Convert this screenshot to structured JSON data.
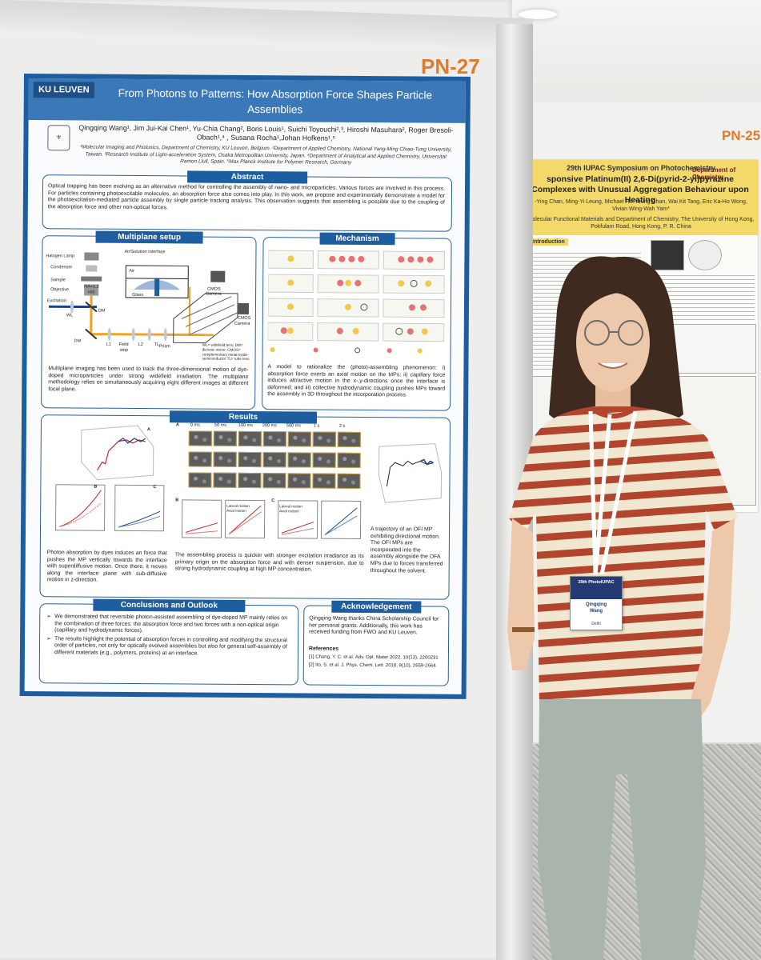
{
  "scene": {
    "board_id": "PN-27",
    "neighbor_board_id": "PN-25"
  },
  "poster": {
    "logo": "KU LEUVEN",
    "title": "From Photons to Patterns: How  Absorption Force Shapes Particle Assemblies",
    "authors": "Qingqing Wang¹, Jim Jui-Kai Chen¹, Yu-Chia Chang², Boris Louis¹, Suichi Toyouchi²,³, Hiroshi Masuhara², Roger Bresoli-Obach¹,⁴ , Susana Rocha¹,Johan Hofkens¹,⁵",
    "affiliations": "¹Molecular Imaging and Photonics, Department of Chemistry, KU Leuven, Belgium. ²Department of Applied Chemistry, National Yang-Ming Chiao-Tung University, Taiwan. ³Research Institute of Light-acceleration System, Osaka Metropolitan University, Japan. ⁴Department of Analytical and Applied Chemistry, Universitat Ramon Llull, Spain. ⁵Max Planck Institute for Polymer Research, Germany",
    "abstract": {
      "heading": "Abstract",
      "text": "Optical trapping has been evolving as an alternative method for controlling the assembly of nano- and microparticles. Various forces are involved in this process. For particles containing photoexcitable molecules, an absorption force also comes into play. In this work, we propose and experimentally demonstrate a model for the photoexcitation-mediated particle assembly by single particle tracking analysis. This observation suggests that assembling is possible due to the coupling of the absorption force and other non-optical forces."
    },
    "multiplane": {
      "heading": "Multiplane setup",
      "labels": {
        "halogen": "Halogen Lamp",
        "condenser": "Condenser",
        "sample": "Sample",
        "objective": "Objective",
        "na": "NA=1.2",
        "mag": "×60",
        "interface": "Air/Solution Interface",
        "air": "Air",
        "glass": "Glass",
        "cmos_camera_1": "CMOS",
        "cmos_camera_2": "Camera",
        "excitation": "Excitation",
        "wl": "WL",
        "dm1": "DM",
        "dm2": "DM",
        "prism": "Prism",
        "l1": "L1",
        "field_stop_1": "Field",
        "field_stop_2": "stop",
        "l2": "L2",
        "tl": "TL",
        "legend": "WL= widefield lens; DM= dichroic mirror; CMOS= complementary metal-oxide-semiconductor TL= tube lens"
      },
      "caption": "Multiplane imaging has been used to track the three-dimensional motion of dye-doped microparticles under strong widefield irradiation. The multiplane methodology relies on simultaneously acquiring eight different images at different focal plane."
    },
    "mechanism": {
      "heading": "Mechanism",
      "caption": "A model to rationalize the (photo)-assembling phenomenon: i) absorption force exerts an axial motion on the MPs; ii) capillary force induces attractive motion in the x-,y-directions once the interface is deformed; and iii) collective hydrodynamic coupling pushes MPs toward the assembly in 3D throughout the incorporation process."
    },
    "results": {
      "heading": "Results",
      "caption_left": "Photon absorption by dyes induces an force that pushes the MP vertically towards the interface with superdiffusive motion. Once there, it moves along the interface plane with sub-diffusive motion in z-direction.",
      "caption_mid": "The assembling process is quicker with stronger excitation irradiance as its primary origin on the absorption force and with denser suspension, due to strong hydrodynamic coupling at high MP concentration.",
      "caption_right": "A trajectory of an OFI MP exhibiting directional motion. The OFI MPs are incorporated into the assembly alongside the OFA MPs due to forces transferred throughout the solvent.",
      "timepoints": [
        "0 ms",
        "50 ms",
        "100 ms",
        "200 ms",
        "500 ms",
        "1 s",
        "2 s"
      ],
      "panel_a": "A",
      "panel_b": "B",
      "panel_c": "C",
      "legend_lateral": "Lateral motion",
      "legend_axial": "Axial motion"
    },
    "conclusions": {
      "heading": "Conclusions and Outlook",
      "items": [
        "We demonstrated that reversible photon-assisted assembling of dye-doped MP mainly relies on the combination of three forces: the absorption force and two forces with a non-optical origin (capillary and hydrodynamic forces).",
        "The results highlight the potential of absorption forces in controlling and modifying the structural order of particles, not only for optically evolved assemblies but also for general self-assembly of different materials (e.g., polymers, proteins) at an interface."
      ]
    },
    "acknowledgement": {
      "heading": "Acknowledgement",
      "text": "Qingqing Wang thanks China Scholarship Council for her personal grants. Additionally, this work has received funding from FWO and KU Leuven.",
      "references_heading": "References",
      "ref1": "[1] Chang, Y. C. et al. Adv. Opt. Mater 2022, 10(13), 2200231",
      "ref2": "[2] Ito, S. et al. J. Phys. Chem. Lett. 2018, 9(10), 2659-2664"
    }
  },
  "neighbor_poster": {
    "conference": "29th IUPAC Symposium on Photochemistry",
    "department": "Department of Chemistry",
    "title": "sponsive Platinum(II) 2,6-Di(pyrid-2-yl)pyrazine Complexes with Unusual Aggregation Behaviour upon Heating",
    "authors": "-Ying Chan, Ming-Yi Leung, Michael Ho-Yeung Chan, Wai Kit Tang, Eric Ka-Ho Wong, Vivian Wing-Wah Yam*",
    "affiliation": "Molecular Functional Materials and Department of Chemistry, The University of Hong Kong, Pokfulam Road, Hong Kong, P. R. China",
    "introduction": "Introduction"
  },
  "badge": {
    "conference": "29th PhotoIUPAC",
    "name_1": "Qingqing",
    "name_2": "Wang",
    "city": "Delhi"
  },
  "colors": {
    "poster_blue": "#1d5ea0",
    "board_number": "#e07b2a",
    "neighbor_yellow": "#f3d96a",
    "shirt_stripe": "#b2452e",
    "shirt_base": "#f1e6cf"
  }
}
